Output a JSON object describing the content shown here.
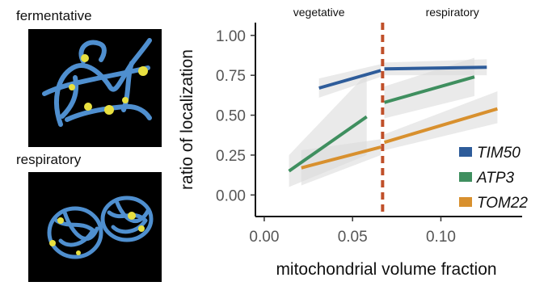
{
  "panels": {
    "top_label": "fermentative",
    "bottom_label": "respiratory"
  },
  "colors": {
    "mito": "#4f8fcf",
    "nucleoid": "#e8e040",
    "TIM50": "#2e5c9a",
    "ATP3": "#3f8f5f",
    "TOM22": "#d8902e",
    "threshold": "#c0502a",
    "band": "#d9d9d9"
  },
  "chart_data": {
    "type": "line",
    "xlabel": "mitochondrial volume fraction",
    "ylabel": "ratio of localization",
    "xlim": [
      -0.005,
      0.146
    ],
    "ylim": [
      -0.135,
      1.08
    ],
    "x_ticks": [
      0.0,
      0.05,
      0.1
    ],
    "x_tick_labels": [
      "0.00",
      "0.05",
      "0.10"
    ],
    "y_ticks": [
      0.0,
      0.25,
      0.5,
      0.75,
      1.0
    ],
    "y_tick_labels": [
      "0.00",
      "0.25",
      "0.50",
      "0.75",
      "1.00"
    ],
    "threshold_x": 0.067,
    "regions": [
      {
        "label": "vegetative",
        "side": "left"
      },
      {
        "label": "respiratory",
        "side": "right"
      }
    ],
    "legend_position": "right",
    "series": [
      {
        "name": "TIM50",
        "segments": [
          {
            "x": [
              0.031,
              0.066
            ],
            "y": [
              0.67,
              0.78
            ],
            "band": [
              [
                0.61,
                0.73
              ],
              [
                0.74,
                0.82
              ]
            ]
          },
          {
            "x": [
              0.068,
              0.126
            ],
            "y": [
              0.79,
              0.8
            ],
            "band": [
              [
                0.75,
                0.83
              ],
              [
                0.75,
                0.85
              ]
            ]
          }
        ]
      },
      {
        "name": "ATP3",
        "segments": [
          {
            "x": [
              0.014,
              0.058
            ],
            "y": [
              0.15,
              0.49
            ],
            "band": [
              [
                0.05,
                0.25
              ],
              [
                0.25,
                0.76
              ]
            ]
          },
          {
            "x": [
              0.068,
              0.119
            ],
            "y": [
              0.58,
              0.74
            ],
            "band": [
              [
                0.48,
                0.68
              ],
              [
                0.62,
                0.86
              ]
            ]
          }
        ]
      },
      {
        "name": "TOM22",
        "segments": [
          {
            "x": [
              0.021,
              0.066
            ],
            "y": [
              0.17,
              0.3
            ],
            "band": [
              [
                0.06,
                0.28
              ],
              [
                0.25,
                0.35
              ]
            ]
          },
          {
            "x": [
              0.068,
              0.132
            ],
            "y": [
              0.33,
              0.54
            ],
            "band": [
              [
                0.28,
                0.38
              ],
              [
                0.45,
                0.65
              ]
            ]
          }
        ]
      }
    ]
  }
}
